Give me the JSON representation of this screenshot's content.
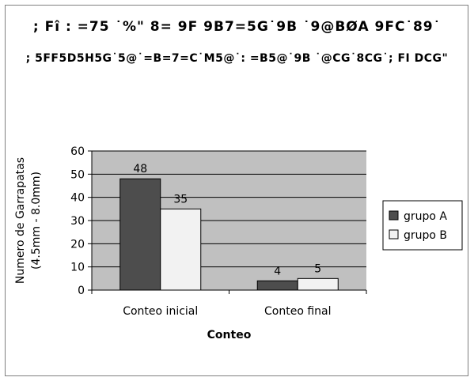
{
  "chart_data": {
    "type": "bar",
    "title": "; Fî : =75 ˙%\" 8= 9F 9B7=5G˙9B ˙9@BØA 9FC˙89˙",
    "subtitle": "; 5FF5D5H5G˙5@˙=B=7=C˙M5@˙: =B5@˙9B ˙@CG˙8CG˙; FI DCG\"",
    "xlabel": "Conteo",
    "ylabel_lines": [
      "Numero de Garrapatas",
      "(4.5mm - 8.0mm)"
    ],
    "categories": [
      "Conteo inicial",
      "Conteo final"
    ],
    "series": [
      {
        "name": "grupo A",
        "values": [
          48,
          4
        ],
        "color": "#4d4d4d"
      },
      {
        "name": "grupo B",
        "values": [
          35,
          5
        ],
        "color": "#f2f2f2"
      }
    ],
    "ylim": [
      0,
      60
    ],
    "yticks": [
      0,
      10,
      20,
      30,
      40,
      50,
      60
    ],
    "grid": true,
    "legend": "right",
    "plot_background": "#c0c0c0"
  }
}
